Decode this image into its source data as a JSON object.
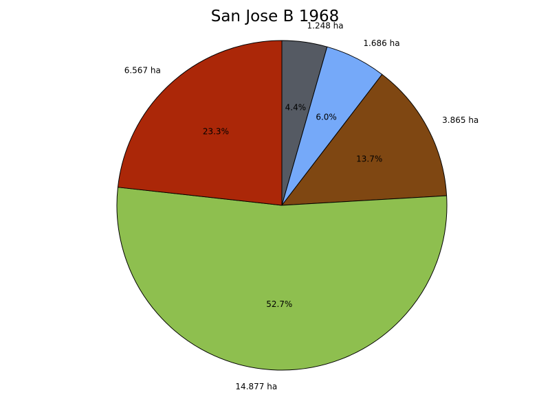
{
  "chart_data": {
    "type": "pie",
    "title": "San Jose B 1968",
    "start_angle_deg": 90,
    "direction": "clockwise",
    "slices": [
      {
        "label": "1.248 ha",
        "value": 1.248,
        "percent_label": "4.4%",
        "color": "#555a63"
      },
      {
        "label": "1.686 ha",
        "value": 1.686,
        "percent_label": "6.0%",
        "color": "#75a9f9"
      },
      {
        "label": "3.865 ha",
        "value": 3.865,
        "percent_label": "13.7%",
        "color": "#7f4712"
      },
      {
        "label": "14.877 ha",
        "value": 14.877,
        "percent_label": "52.7%",
        "color": "#8ebf4f"
      },
      {
        "label": "6.567 ha",
        "value": 6.567,
        "percent_label": "23.3%",
        "color": "#ab2708"
      }
    ]
  }
}
